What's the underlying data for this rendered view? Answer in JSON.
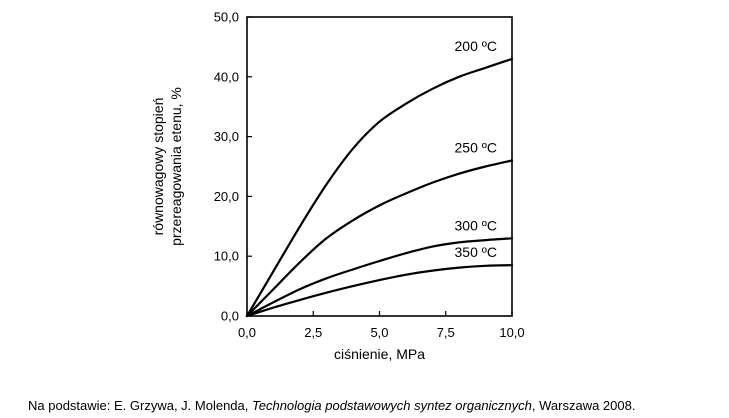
{
  "chart_data": {
    "type": "line",
    "xlabel": "ciśnienie, MPa",
    "ylabel_lines": [
      "równowagowy stopień",
      "przereagowania etenu, %"
    ],
    "xlim": [
      0,
      10
    ],
    "ylim": [
      0,
      50
    ],
    "x_ticks": [
      0,
      2.5,
      5,
      7.5,
      10
    ],
    "x_tick_labels": [
      "0,0",
      "2,5",
      "5,0",
      "7,5",
      "10,0"
    ],
    "y_ticks": [
      0,
      10,
      20,
      30,
      40,
      50
    ],
    "y_tick_labels": [
      "0,0",
      "10,0",
      "20,0",
      "30,0",
      "40,0",
      "50,0"
    ],
    "grid": false,
    "series": [
      {
        "name": "200 ºC",
        "x": [
          0,
          1,
          2,
          3,
          4,
          5,
          6,
          7,
          8,
          9,
          10
        ],
        "y": [
          0,
          7.5,
          15,
          22,
          28,
          32.5,
          35.5,
          38,
          40,
          41.5,
          43
        ]
      },
      {
        "name": "250 ºC",
        "x": [
          0,
          1,
          2,
          3,
          4,
          5,
          6,
          7,
          8,
          9,
          10
        ],
        "y": [
          0,
          4.5,
          9,
          13,
          16,
          18.5,
          20.5,
          22.3,
          23.8,
          25,
          26
        ]
      },
      {
        "name": "300 ºC",
        "x": [
          0,
          1,
          2,
          3,
          4,
          5,
          6,
          7,
          8,
          9,
          10
        ],
        "y": [
          0,
          2.3,
          4.5,
          6.3,
          7.8,
          9.2,
          10.5,
          11.6,
          12.3,
          12.7,
          13
        ]
      },
      {
        "name": "350 ºC",
        "x": [
          0,
          1,
          2,
          3,
          4,
          5,
          6,
          7,
          8,
          9,
          10
        ],
        "y": [
          0,
          1.4,
          2.7,
          3.9,
          5,
          6,
          6.9,
          7.6,
          8.1,
          8.4,
          8.5
        ]
      }
    ]
  },
  "caption": {
    "prefix": "Na podstawie: E. Grzywa, J. Molenda, ",
    "title": "Technologia podstawowych syntez organicznych",
    "suffix": ", Warszawa 2008."
  }
}
